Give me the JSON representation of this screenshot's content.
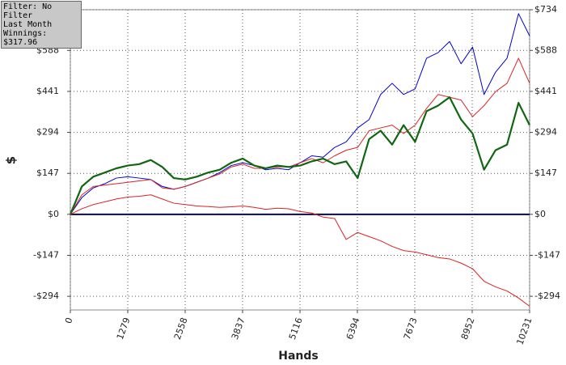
{
  "info_box": {
    "lines": [
      "Filter: No Filter",
      "Last Month",
      "Winnings: $317.96"
    ]
  },
  "chart_data": {
    "type": "line",
    "xlabel": "Hands",
    "ylabel": "$",
    "x": [
      0,
      256,
      512,
      768,
      1024,
      1280,
      1536,
      1792,
      2048,
      2304,
      2560,
      2816,
      3072,
      3328,
      3584,
      3840,
      4096,
      4352,
      4608,
      4864,
      5120,
      5376,
      5632,
      5888,
      6144,
      6400,
      6656,
      6912,
      7168,
      7424,
      7680,
      7936,
      8192,
      8448,
      8704,
      8960,
      9216,
      9472,
      9728,
      9984,
      10231
    ],
    "series": [
      {
        "color": "#0000cc",
        "width": 1,
        "values": [
          0,
          60,
          95,
          110,
          130,
          135,
          130,
          125,
          100,
          90,
          100,
          115,
          130,
          150,
          175,
          185,
          175,
          160,
          165,
          160,
          185,
          210,
          205,
          240,
          260,
          310,
          340,
          430,
          470,
          430,
          450,
          560,
          580,
          620,
          540,
          600,
          430,
          510,
          560,
          720,
          640
        ]
      },
      {
        "color": "#dd2222",
        "width": 1,
        "values": [
          0,
          70,
          100,
          105,
          110,
          115,
          120,
          125,
          95,
          90,
          100,
          115,
          130,
          145,
          170,
          180,
          165,
          165,
          170,
          170,
          185,
          200,
          185,
          210,
          230,
          240,
          300,
          310,
          320,
          290,
          320,
          380,
          430,
          420,
          410,
          350,
          390,
          440,
          470,
          560,
          470
        ]
      },
      {
        "color": "#116611",
        "width": 2.2,
        "values": [
          0,
          100,
          135,
          150,
          165,
          175,
          180,
          195,
          170,
          130,
          125,
          135,
          150,
          160,
          185,
          200,
          175,
          165,
          175,
          170,
          175,
          190,
          200,
          180,
          190,
          130,
          270,
          300,
          250,
          320,
          260,
          370,
          390,
          420,
          340,
          290,
          160,
          230,
          250,
          400,
          320
        ]
      },
      {
        "color": "#dd2222",
        "width": 1,
        "values": [
          0,
          20,
          35,
          45,
          55,
          62,
          65,
          70,
          55,
          40,
          35,
          30,
          28,
          25,
          27,
          30,
          25,
          18,
          22,
          20,
          10,
          5,
          -10,
          -15,
          -90,
          -65,
          -80,
          -95,
          -115,
          -130,
          -135,
          -145,
          -155,
          -160,
          -175,
          -195,
          -240,
          -260,
          -275,
          -300,
          -330
        ]
      }
    ],
    "xlim": [
      0,
      10231
    ],
    "xticks": [
      0,
      1279,
      2558,
      3837,
      5116,
      6394,
      7673,
      8952,
      10231
    ],
    "ylim": [
      -343,
      734
    ],
    "yticks": [
      {
        "value": -294,
        "label": "-$294"
      },
      {
        "value": -147,
        "label": "-$147"
      },
      {
        "value": 0,
        "label": "$0"
      },
      {
        "value": 147,
        "label": "$147"
      },
      {
        "value": 294,
        "label": "$294"
      },
      {
        "value": 441,
        "label": "$441"
      },
      {
        "value": 588,
        "label": "$588"
      },
      {
        "value": 734,
        "label": "$734"
      }
    ],
    "grid": true
  }
}
